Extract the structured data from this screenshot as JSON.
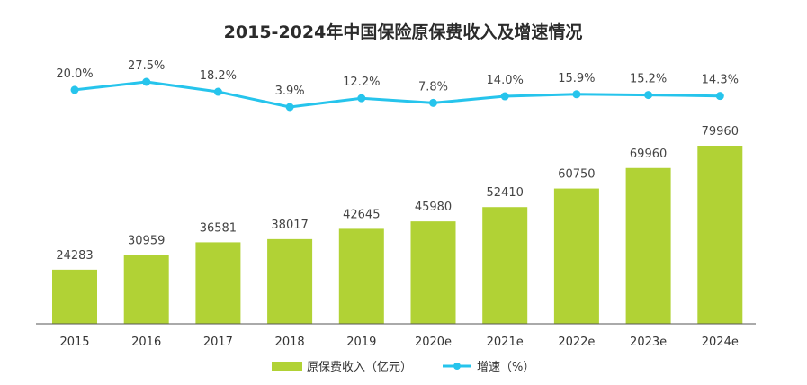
{
  "chart_data": {
    "type": "bar+line",
    "title": "2015-2024年中国保险原保费收入及增速情况",
    "categories": [
      "2015",
      "2016",
      "2017",
      "2018",
      "2019",
      "2020e",
      "2021e",
      "2022e",
      "2023e",
      "2024e"
    ],
    "series": [
      {
        "name": "原保费收入（亿元）",
        "type": "bar",
        "values": [
          24283,
          30959,
          36581,
          38017,
          42645,
          45980,
          52410,
          60750,
          69960,
          79960
        ],
        "labels": [
          "24283",
          "30959",
          "36581",
          "38017",
          "42645",
          "45980",
          "52410",
          "60750",
          "69960",
          "79960"
        ]
      },
      {
        "name": "增速（%）",
        "type": "line",
        "values": [
          20.0,
          27.5,
          18.2,
          3.9,
          12.2,
          7.8,
          14.0,
          15.9,
          15.2,
          14.3
        ],
        "labels": [
          "20.0%",
          "27.5%",
          "18.2%",
          "3.9%",
          "12.2%",
          "7.8%",
          "14.0%",
          "15.9%",
          "15.2%",
          "14.3%"
        ]
      }
    ],
    "colors": {
      "bar": "#B1D235",
      "line": "#26C4EC",
      "axis": "#555555"
    },
    "legend_position": "bottom",
    "grid": false
  }
}
